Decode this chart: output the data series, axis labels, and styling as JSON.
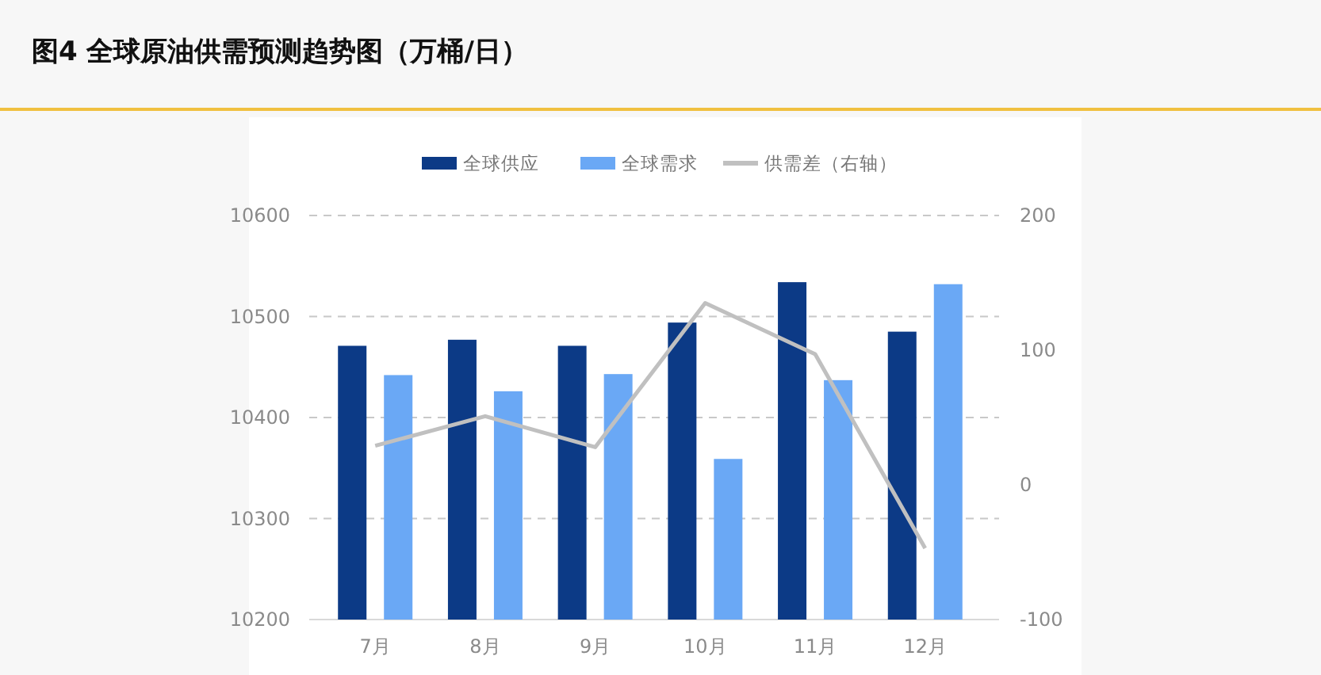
{
  "chart_data": {
    "type": "bar",
    "title": "图4 全球原油供需预测趋势图（万桶/日）",
    "categories": [
      "7月",
      "8月",
      "9月",
      "10月",
      "11月",
      "12月"
    ],
    "series": [
      {
        "name": "全球供应",
        "color": "#0c3a86",
        "values": [
          10471,
          10477,
          10471,
          10494,
          10534,
          10485
        ]
      },
      {
        "name": "全球需求",
        "color": "#6aa8f5",
        "values": [
          10442,
          10426,
          10443,
          10359,
          10437,
          10532
        ]
      },
      {
        "name": "供需差（右轴）",
        "type": "line",
        "axis": "y2",
        "color": "#c0c0c0",
        "values": [
          29,
          51,
          28,
          135,
          97,
          -47
        ]
      }
    ],
    "ylim": [
      10200,
      10600
    ],
    "yticks": [
      10200,
      10300,
      10400,
      10500,
      10600
    ],
    "y2lim": [
      -100,
      200
    ],
    "y2ticks": [
      -100,
      0,
      100,
      200
    ],
    "grid": "y",
    "legend": "top"
  }
}
